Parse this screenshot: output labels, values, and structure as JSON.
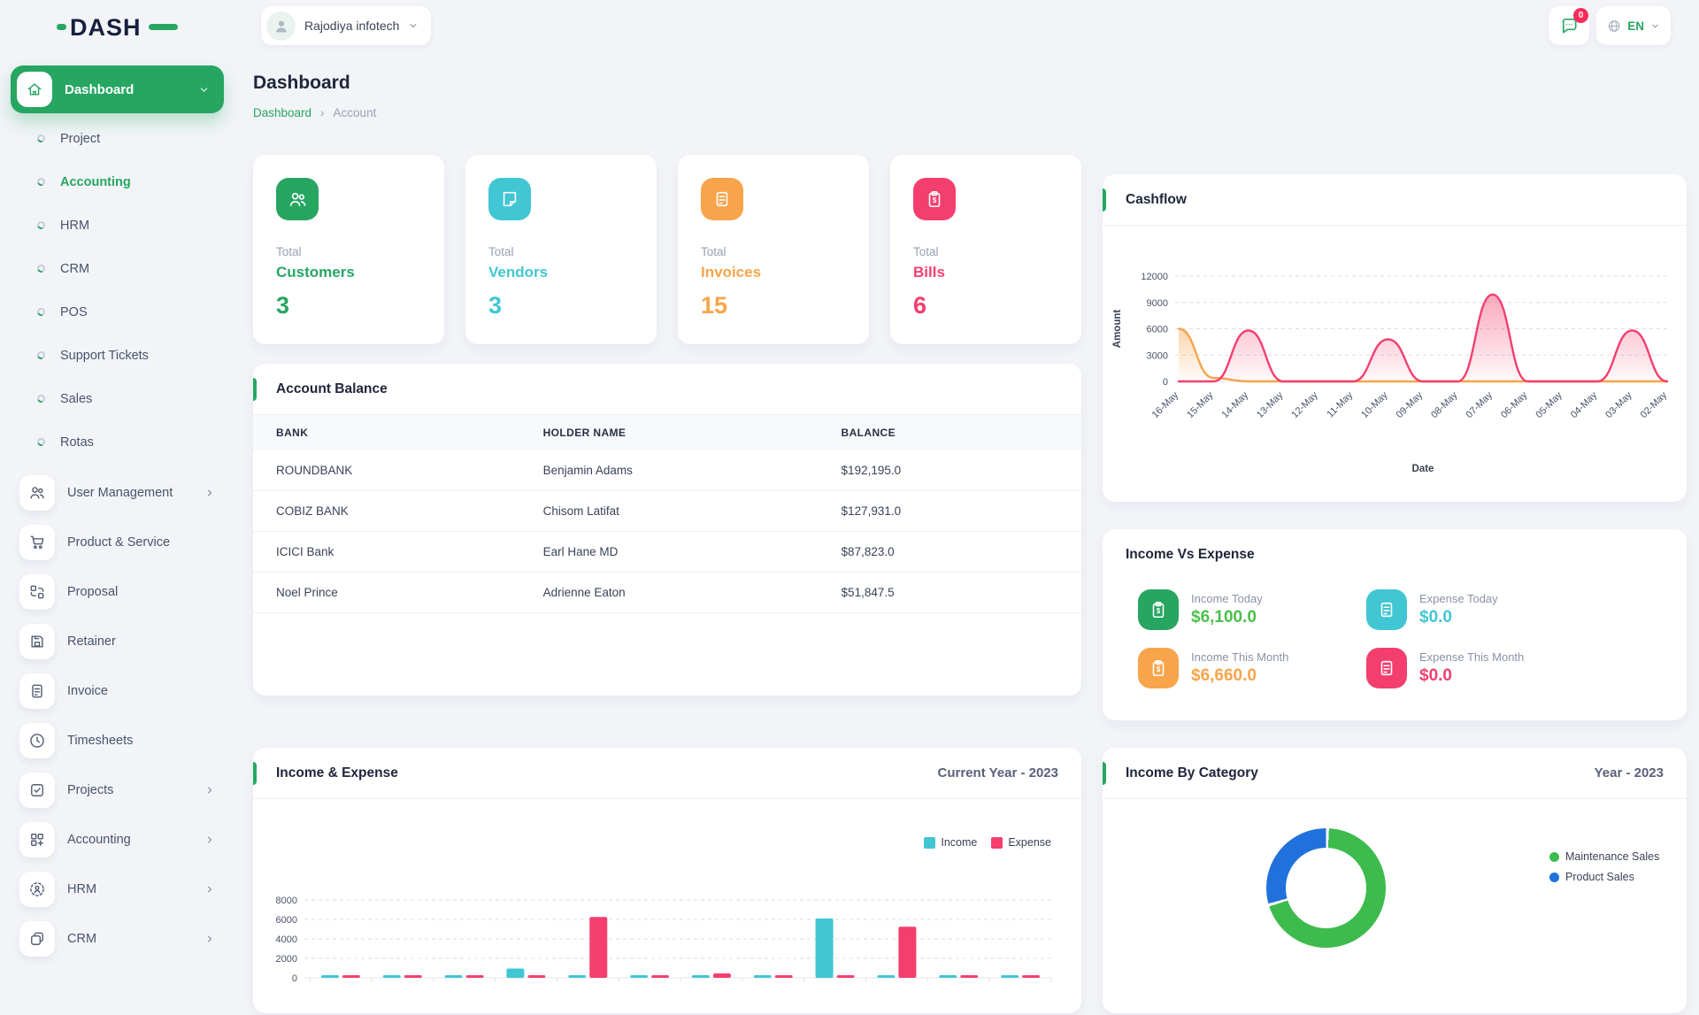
{
  "colors": {
    "primary": "#27A662",
    "page_bg": "#F2F4F8",
    "text_dark": "#232B3E",
    "text_gray": "#8A92A6",
    "cyan": "#41C6D3",
    "orange": "#F8A44B",
    "pink": "#F43F6E",
    "income_green": "#4CBF4C",
    "donut_green": "#3DBB4D",
    "donut_blue": "#2071DB",
    "badge_red": "#FB2B5A"
  },
  "topbar": {
    "logo_text": "DASH",
    "company": "Rajodiya infotech",
    "notification_badge": "0",
    "language": "EN"
  },
  "sidebar": {
    "dashboard_label": "Dashboard",
    "sub_items": [
      {
        "label": "Project"
      },
      {
        "label": "Accounting"
      },
      {
        "label": "HRM"
      },
      {
        "label": "CRM"
      },
      {
        "label": "POS"
      },
      {
        "label": "Support Tickets"
      },
      {
        "label": "Sales"
      },
      {
        "label": "Rotas"
      }
    ],
    "menu_items": [
      {
        "label": "User Management"
      },
      {
        "label": "Product & Service"
      },
      {
        "label": "Proposal"
      },
      {
        "label": "Retainer"
      },
      {
        "label": "Invoice"
      },
      {
        "label": "Timesheets"
      },
      {
        "label": "Projects"
      },
      {
        "label": "Accounting"
      },
      {
        "label": "HRM"
      },
      {
        "label": "CRM"
      }
    ]
  },
  "page": {
    "title": "Dashboard",
    "breadcrumb_root": "Dashboard",
    "breadcrumb_current": "Account"
  },
  "stats": [
    {
      "prefix": "Total",
      "label": "Customers",
      "value": "3",
      "color": "#27A662"
    },
    {
      "prefix": "Total",
      "label": "Vendors",
      "value": "3",
      "color": "#41C6D3"
    },
    {
      "prefix": "Total",
      "label": "Invoices",
      "value": "15",
      "color": "#F8A44B"
    },
    {
      "prefix": "Total",
      "label": "Bills",
      "value": "6",
      "color": "#F43F6E"
    }
  ],
  "account_balance": {
    "title": "Account Balance",
    "columns": [
      "BANK",
      "HOLDER NAME",
      "BALANCE"
    ],
    "rows": [
      [
        "ROUNDBANK",
        "Benjamin Adams",
        "$192,195.0"
      ],
      [
        "COBIZ BANK",
        "Chisom Latifat",
        "$127,931.0"
      ],
      [
        "ICICI Bank",
        "Earl Hane MD",
        "$87,823.0"
      ],
      [
        "Noel Prince",
        "Adrienne Eaton",
        "$51,847.5"
      ]
    ]
  },
  "cashflow_panel": {
    "title": "Cashflow"
  },
  "income_vs_expense": {
    "title": "Income Vs Expense",
    "items": [
      {
        "label": "Income Today",
        "value": "$6,100.0",
        "value_color": "#4CBF4C",
        "icon_bg": "#27A662",
        "icon": "clipboard-dollar"
      },
      {
        "label": "Expense Today",
        "value": "$0.0",
        "value_color": "#41C6D3",
        "icon_bg": "#41C6D3",
        "icon": "document"
      },
      {
        "label": "Income This Month",
        "value": "$6,660.0",
        "value_color": "#F8A44B",
        "icon_bg": "#F8A44B",
        "icon": "clipboard-dollar"
      },
      {
        "label": "Expense This Month",
        "value": "$0.0",
        "value_color": "#F43F6E",
        "icon_bg": "#F43F6E",
        "icon": "document"
      }
    ]
  },
  "income_expense_panel": {
    "title": "Income & Expense",
    "period": "Current Year - 2023"
  },
  "income_by_category_panel": {
    "title": "Income By Category",
    "period": "Year - 2023"
  },
  "chart_data": [
    {
      "id": "cashflow",
      "type": "area",
      "title": "Cashflow",
      "xlabel": "Date",
      "ylabel": "Amount",
      "ylim": [
        0,
        12000
      ],
      "yticks": [
        0,
        3000,
        6000,
        9000,
        12000
      ],
      "grid": true,
      "legend": false,
      "x": [
        "16-May",
        "15-May",
        "14-May",
        "13-May",
        "12-May",
        "11-May",
        "10-May",
        "09-May",
        "08-May",
        "07-May",
        "06-May",
        "05-May",
        "04-May",
        "03-May",
        "02-May"
      ],
      "series": [
        {
          "name": "orange-flow",
          "color": "#F8A44B",
          "values": [
            6000,
            400,
            0,
            0,
            0,
            0,
            0,
            0,
            0,
            0,
            0,
            0,
            0,
            0,
            0
          ]
        },
        {
          "name": "pink-flow",
          "color": "#F43F6E",
          "values": [
            0,
            0,
            5800,
            0,
            0,
            0,
            4800,
            0,
            0,
            9900,
            0,
            0,
            0,
            5800,
            0
          ]
        }
      ]
    },
    {
      "id": "income-expense",
      "type": "bar",
      "title": "Income & Expense",
      "period": "Current Year - 2023",
      "ylim": [
        0,
        8000
      ],
      "yticks": [
        0,
        2000,
        4000,
        6000,
        8000
      ],
      "x_labels_visible": false,
      "num_groups": 12,
      "grid": true,
      "legend_position": "top-right",
      "series": [
        {
          "name": "Income",
          "color": "#41C6D3",
          "values": [
            250,
            150,
            150,
            950,
            150,
            150,
            250,
            150,
            6100,
            150,
            150,
            150
          ]
        },
        {
          "name": "Expense",
          "color": "#F43F6E",
          "values": [
            150,
            150,
            150,
            150,
            6250,
            150,
            450,
            150,
            150,
            5250,
            150,
            150
          ]
        }
      ]
    },
    {
      "id": "income-by-category",
      "type": "donut",
      "title": "Income By Category",
      "period": "Year - 2023",
      "legend_position": "right",
      "slices": [
        {
          "label": "Maintenance Sales",
          "color": "#3DBB4D",
          "pct": 70
        },
        {
          "label": "Product Sales",
          "color": "#2071DB",
          "pct": 30
        }
      ]
    }
  ]
}
